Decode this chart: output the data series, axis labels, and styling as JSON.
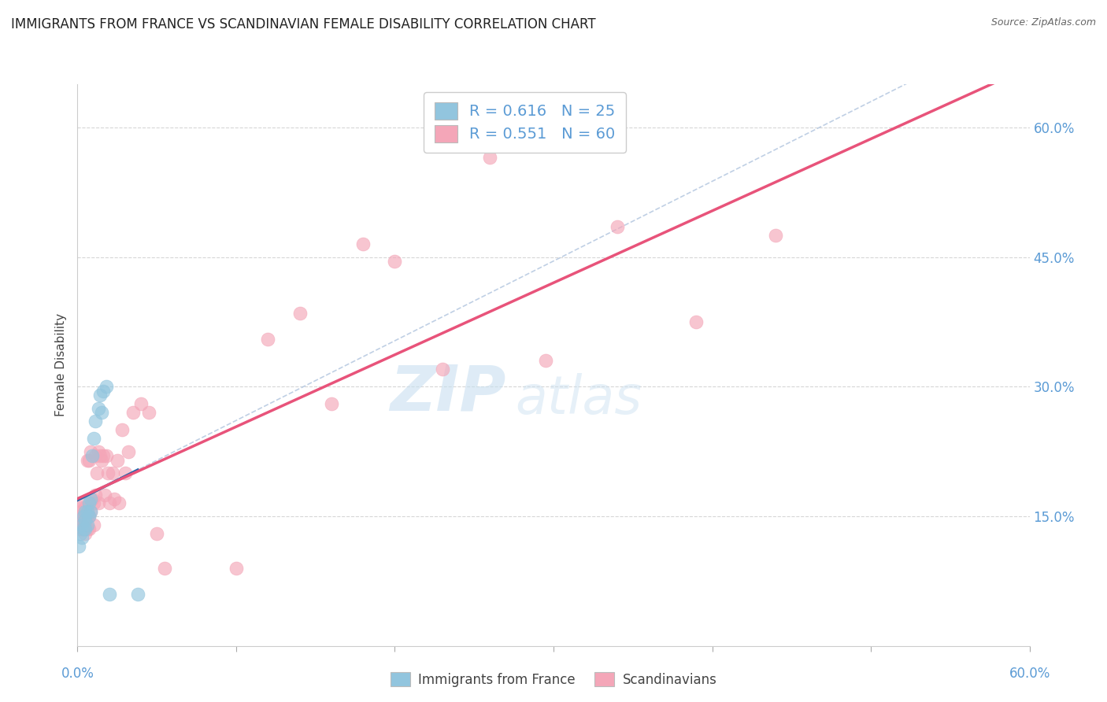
{
  "title": "IMMIGRANTS FROM FRANCE VS SCANDINAVIAN FEMALE DISABILITY CORRELATION CHART",
  "source": "Source: ZipAtlas.com",
  "ylabel": "Female Disability",
  "y_ticks": [
    0.15,
    0.3,
    0.45,
    0.6
  ],
  "y_tick_labels": [
    "15.0%",
    "30.0%",
    "45.0%",
    "60.0%"
  ],
  "x_range": [
    0.0,
    0.6
  ],
  "y_range": [
    0.0,
    0.65
  ],
  "legend1_r": "0.616",
  "legend1_n": "25",
  "legend2_r": "0.551",
  "legend2_n": "60",
  "color_blue": "#92c5de",
  "color_pink": "#f4a6b8",
  "color_trendline_blue": "#2166ac",
  "color_trendline_pink": "#e8537a",
  "color_dashed": "#b0c4de",
  "watermark_zip": "ZIP",
  "watermark_atlas": "atlas",
  "france_x": [
    0.001,
    0.002,
    0.003,
    0.003,
    0.004,
    0.004,
    0.005,
    0.005,
    0.005,
    0.006,
    0.006,
    0.007,
    0.007,
    0.008,
    0.008,
    0.009,
    0.01,
    0.011,
    0.013,
    0.014,
    0.015,
    0.016,
    0.018,
    0.02,
    0.038
  ],
  "france_y": [
    0.115,
    0.13,
    0.125,
    0.14,
    0.135,
    0.15,
    0.135,
    0.145,
    0.155,
    0.14,
    0.155,
    0.15,
    0.165,
    0.155,
    0.17,
    0.22,
    0.24,
    0.26,
    0.275,
    0.29,
    0.27,
    0.295,
    0.3,
    0.06,
    0.06
  ],
  "scand_x": [
    0.001,
    0.001,
    0.002,
    0.002,
    0.003,
    0.003,
    0.003,
    0.004,
    0.004,
    0.004,
    0.005,
    0.005,
    0.005,
    0.006,
    0.006,
    0.006,
    0.007,
    0.007,
    0.007,
    0.008,
    0.008,
    0.009,
    0.01,
    0.01,
    0.011,
    0.011,
    0.012,
    0.013,
    0.013,
    0.014,
    0.015,
    0.016,
    0.017,
    0.018,
    0.019,
    0.02,
    0.022,
    0.023,
    0.025,
    0.026,
    0.028,
    0.03,
    0.032,
    0.035,
    0.04,
    0.045,
    0.05,
    0.055,
    0.1,
    0.12,
    0.14,
    0.16,
    0.18,
    0.2,
    0.23,
    0.26,
    0.295,
    0.34,
    0.39,
    0.44
  ],
  "scand_y": [
    0.135,
    0.15,
    0.14,
    0.155,
    0.135,
    0.145,
    0.16,
    0.135,
    0.15,
    0.165,
    0.13,
    0.145,
    0.16,
    0.135,
    0.15,
    0.215,
    0.135,
    0.15,
    0.215,
    0.225,
    0.155,
    0.17,
    0.14,
    0.165,
    0.175,
    0.22,
    0.2,
    0.165,
    0.225,
    0.22,
    0.215,
    0.22,
    0.175,
    0.22,
    0.2,
    0.165,
    0.2,
    0.17,
    0.215,
    0.165,
    0.25,
    0.2,
    0.225,
    0.27,
    0.28,
    0.27,
    0.13,
    0.09,
    0.09,
    0.355,
    0.385,
    0.28,
    0.465,
    0.445,
    0.32,
    0.565,
    0.33,
    0.485,
    0.375,
    0.475
  ]
}
